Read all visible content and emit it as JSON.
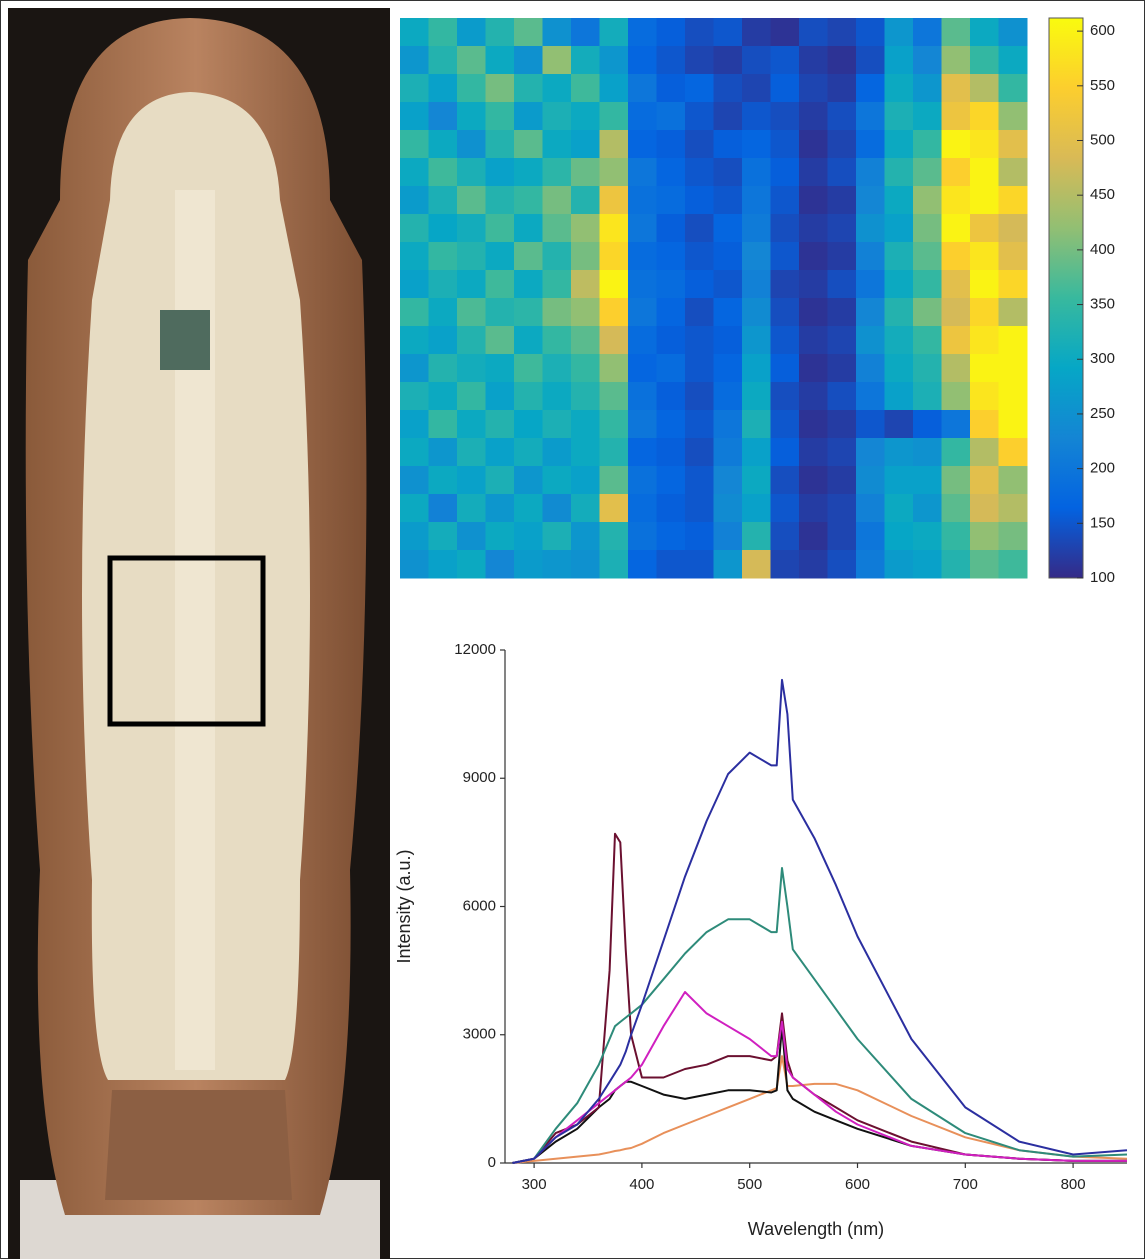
{
  "chart_data": [
    {
      "type": "heatmap",
      "colormap": "parula",
      "clim": [
        100,
        612
      ],
      "cticks": [
        100,
        150,
        200,
        250,
        300,
        350,
        400,
        450,
        500,
        550,
        600
      ],
      "z": [
        [
          300,
          350,
          270,
          330,
          380,
          250,
          200,
          310,
          180,
          160,
          140,
          150,
          120,
          110,
          140,
          130,
          150,
          260,
          200,
          380,
          300,
          250
        ],
        [
          260,
          330,
          380,
          300,
          250,
          420,
          310,
          260,
          170,
          150,
          130,
          120,
          140,
          150,
          120,
          110,
          140,
          280,
          230,
          420,
          350,
          300
        ],
        [
          320,
          280,
          350,
          400,
          330,
          300,
          360,
          280,
          200,
          160,
          170,
          140,
          130,
          160,
          130,
          120,
          170,
          300,
          260,
          500,
          450,
          350
        ],
        [
          280,
          230,
          300,
          350,
          270,
          320,
          300,
          350,
          180,
          190,
          150,
          130,
          150,
          140,
          120,
          140,
          200,
          320,
          300,
          520,
          560,
          420
        ],
        [
          350,
          300,
          250,
          330,
          380,
          300,
          280,
          450,
          170,
          160,
          140,
          160,
          170,
          150,
          110,
          130,
          180,
          300,
          350,
          600,
          580,
          500
        ],
        [
          300,
          360,
          320,
          280,
          300,
          340,
          390,
          420,
          200,
          170,
          150,
          140,
          190,
          160,
          120,
          140,
          220,
          330,
          380,
          550,
          600,
          450
        ],
        [
          270,
          320,
          380,
          330,
          350,
          400,
          330,
          520,
          190,
          180,
          160,
          150,
          200,
          150,
          110,
          120,
          230,
          300,
          420,
          580,
          600,
          560
        ],
        [
          330,
          290,
          310,
          360,
          300,
          380,
          420,
          580,
          200,
          160,
          140,
          170,
          210,
          140,
          120,
          130,
          250,
          280,
          400,
          600,
          520,
          480
        ],
        [
          300,
          350,
          330,
          300,
          380,
          330,
          400,
          560,
          180,
          170,
          150,
          160,
          230,
          150,
          110,
          120,
          220,
          320,
          380,
          550,
          580,
          500
        ],
        [
          280,
          320,
          300,
          360,
          300,
          350,
          460,
          600,
          190,
          180,
          160,
          150,
          220,
          130,
          120,
          140,
          200,
          300,
          350,
          500,
          600,
          560
        ],
        [
          350,
          300,
          370,
          330,
          340,
          400,
          420,
          550,
          200,
          170,
          140,
          170,
          240,
          140,
          110,
          120,
          230,
          330,
          400,
          480,
          560,
          450
        ],
        [
          300,
          280,
          330,
          380,
          300,
          350,
          380,
          480,
          180,
          160,
          150,
          160,
          260,
          150,
          120,
          130,
          250,
          310,
          350,
          520,
          580,
          600
        ],
        [
          260,
          330,
          310,
          300,
          360,
          320,
          350,
          420,
          170,
          180,
          150,
          170,
          280,
          160,
          110,
          120,
          220,
          300,
          330,
          450,
          600,
          600
        ],
        [
          320,
          300,
          350,
          280,
          330,
          300,
          330,
          380,
          190,
          160,
          140,
          180,
          300,
          140,
          120,
          140,
          200,
          280,
          320,
          420,
          580,
          600
        ],
        [
          280,
          350,
          300,
          330,
          290,
          320,
          300,
          350,
          200,
          170,
          150,
          200,
          320,
          150,
          110,
          120,
          150,
          130,
          160,
          200,
          550,
          600
        ],
        [
          300,
          260,
          320,
          280,
          310,
          270,
          300,
          330,
          170,
          160,
          140,
          210,
          280,
          160,
          120,
          130,
          230,
          260,
          250,
          350,
          450,
          550
        ],
        [
          250,
          300,
          280,
          320,
          260,
          300,
          280,
          380,
          190,
          170,
          150,
          230,
          300,
          140,
          110,
          120,
          240,
          280,
          280,
          400,
          500,
          420
        ],
        [
          300,
          220,
          310,
          260,
          300,
          240,
          310,
          500,
          180,
          160,
          150,
          240,
          280,
          150,
          120,
          130,
          220,
          300,
          260,
          380,
          480,
          450
        ],
        [
          270,
          310,
          250,
          300,
          280,
          320,
          260,
          330,
          190,
          170,
          160,
          220,
          330,
          140,
          110,
          130,
          200,
          290,
          300,
          350,
          420,
          400
        ],
        [
          250,
          280,
          300,
          230,
          270,
          260,
          250,
          320,
          170,
          150,
          150,
          260,
          480,
          130,
          120,
          140,
          210,
          270,
          280,
          330,
          380,
          360
        ]
      ]
    },
    {
      "type": "line",
      "x_label": "Wavelength (nm)",
      "y_label": "Intensity (a.u.)",
      "xlim": [
        273,
        850
      ],
      "ylim": [
        0,
        12000
      ],
      "xticks": [
        300,
        400,
        500,
        600,
        700,
        800
      ],
      "yticks": [
        0,
        3000,
        6000,
        9000,
        12000
      ],
      "x": [
        280,
        300,
        320,
        340,
        360,
        370,
        375,
        380,
        385,
        390,
        400,
        420,
        440,
        460,
        480,
        500,
        520,
        525,
        530,
        535,
        540,
        560,
        580,
        600,
        650,
        700,
        750,
        800,
        850
      ],
      "series": [
        {
          "color": "#e8905a",
          "values": [
            0,
            50,
            100,
            150,
            200,
            250,
            280,
            300,
            330,
            350,
            450,
            700,
            900,
            1100,
            1300,
            1500,
            1700,
            1750,
            2500,
            1800,
            1800,
            1850,
            1850,
            1700,
            1100,
            600,
            300,
            150,
            100
          ]
        },
        {
          "color": "#111111",
          "values": [
            0,
            100,
            500,
            800,
            1300,
            1500,
            1700,
            1800,
            1900,
            1900,
            1800,
            1600,
            1500,
            1600,
            1700,
            1700,
            1650,
            1700,
            3200,
            1700,
            1500,
            1200,
            1000,
            800,
            400,
            200,
            100,
            50,
            50
          ]
        },
        {
          "color": "#6b1030",
          "values": [
            0,
            100,
            700,
            900,
            1300,
            4500,
            7700,
            7500,
            5000,
            3000,
            2000,
            2000,
            2200,
            2300,
            2500,
            2500,
            2400,
            2500,
            3500,
            2400,
            2000,
            1600,
            1300,
            1000,
            500,
            200,
            100,
            50,
            50
          ]
        },
        {
          "color": "#d020c0",
          "values": [
            0,
            100,
            600,
            1000,
            1400,
            1600,
            1700,
            1800,
            1900,
            2000,
            2300,
            3200,
            4000,
            3500,
            3200,
            2900,
            2500,
            2500,
            3300,
            2200,
            2000,
            1600,
            1200,
            900,
            400,
            200,
            100,
            50,
            50
          ]
        },
        {
          "color": "#2e8b7a",
          "values": [
            0,
            100,
            800,
            1400,
            2300,
            2900,
            3200,
            3300,
            3400,
            3500,
            3700,
            4300,
            4900,
            5400,
            5700,
            5700,
            5400,
            5400,
            6900,
            6000,
            5000,
            4300,
            3600,
            2900,
            1500,
            700,
            300,
            150,
            200
          ]
        },
        {
          "color": "#2b2fa0",
          "values": [
            0,
            100,
            600,
            900,
            1500,
            1900,
            2100,
            2300,
            2600,
            3000,
            3700,
            5200,
            6700,
            8000,
            9100,
            9600,
            9300,
            9300,
            11300,
            10500,
            8500,
            7600,
            6500,
            5300,
            2900,
            1300,
            500,
            200,
            300
          ]
        }
      ]
    }
  ]
}
